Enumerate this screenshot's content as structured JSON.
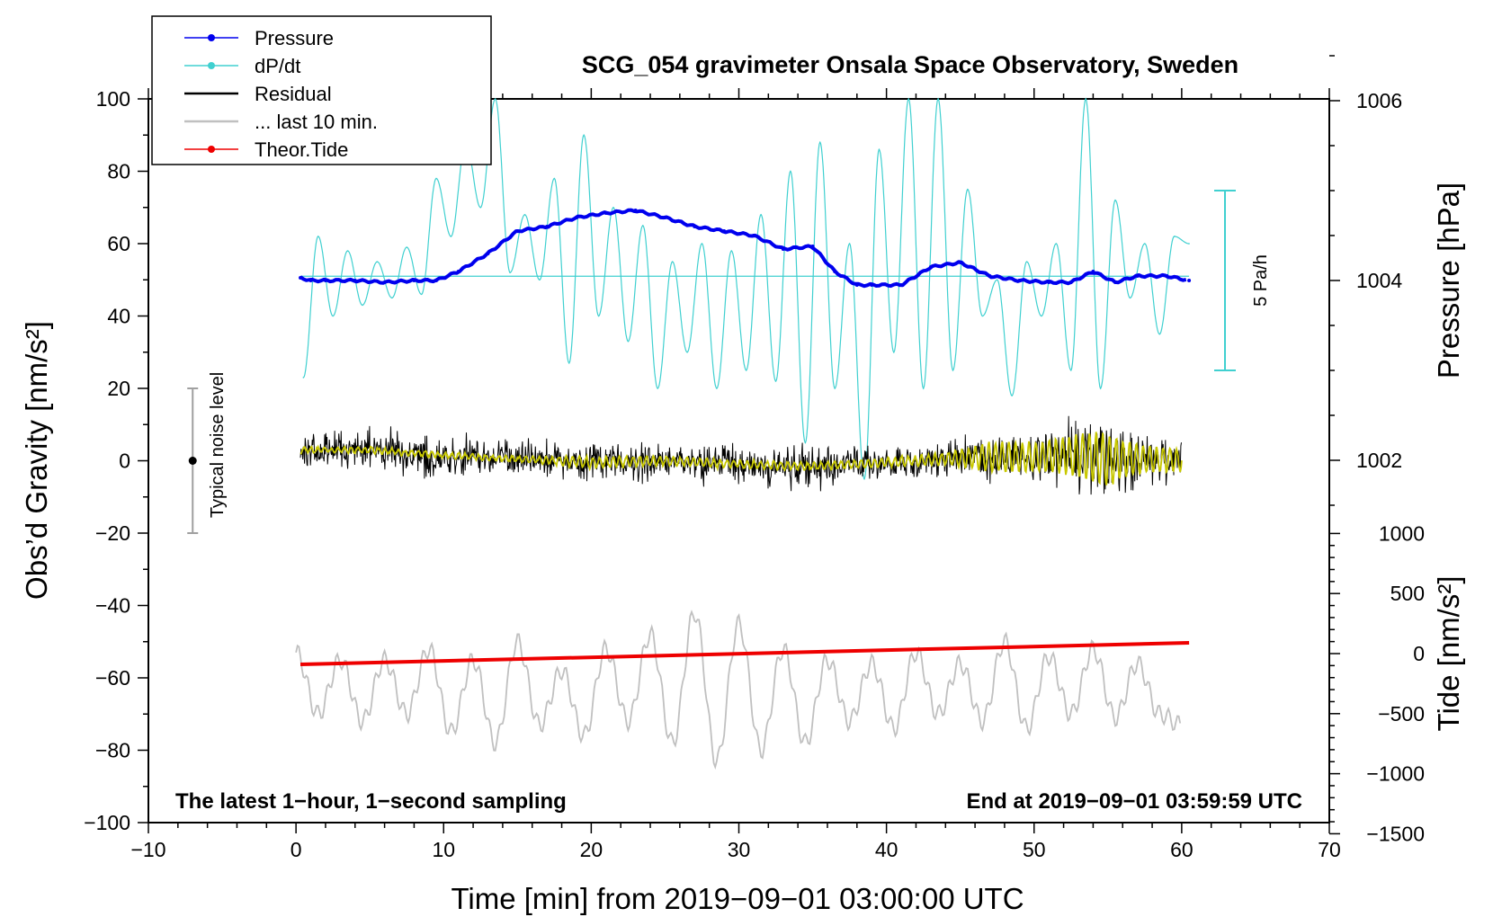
{
  "chart_data": {
    "type": "line",
    "title": "SCG_054 gravimeter Onsala Space Observatory, Sweden",
    "xlabel": "Time [min] from 2019−09−01 03:00:00 UTC",
    "ylabel_left": "Obs’d Gravity [nm/s²]",
    "ylabel_pressure": "Pressure [hPa]",
    "ylabel_tide": "Tide [nm/s²]",
    "xlim": [
      -10,
      70
    ],
    "ylim": [
      -100,
      100
    ],
    "pressure_lim": [
      1002,
      1006
    ],
    "tide_lim": [
      -1500,
      1000
    ],
    "x_ticks": [
      "−10",
      "0",
      "10",
      "20",
      "30",
      "40",
      "50",
      "60",
      "70"
    ],
    "y_ticks": [
      "100",
      "80",
      "60",
      "40",
      "20",
      "0",
      "−20",
      "−40",
      "−60",
      "−80",
      "−100"
    ],
    "pressure_ticks": [
      "1006",
      "1004",
      "1002"
    ],
    "tide_ticks": [
      "1000",
      "500",
      "0",
      "−500",
      "−1000",
      "−1500"
    ],
    "legend": {
      "placement": "top-left",
      "entries": [
        {
          "label": "Pressure",
          "color": "#0000ee",
          "marker": "dot"
        },
        {
          "label": "dP/dt",
          "color": "#40d0d0",
          "marker": "dot"
        },
        {
          "label": "Residual",
          "color": "#000000",
          "marker": "line"
        },
        {
          "label": "... last 10 min.",
          "color": "#c0c0c0",
          "marker": "line"
        },
        {
          "label": "Theor.Tide",
          "color": "#ee0000",
          "marker": "dot"
        }
      ]
    },
    "annotations": {
      "bottom_left": "The latest 1−hour, 1−second sampling",
      "bottom_right": "End at 2019−09−01 03:59:59 UTC",
      "noise_label": "Typical noise level",
      "rate_label": "5 Pa/h"
    },
    "noise_bar": {
      "x": -7,
      "center": 0,
      "low": -20,
      "high": 20
    },
    "series": [
      {
        "name": "Pressure",
        "axis": "pressure",
        "color": "#0000ee",
        "x": [
          0.3,
          1,
          2,
          4,
          6,
          8,
          9.5,
          11,
          13,
          15,
          17,
          19,
          21,
          23,
          25,
          27,
          29,
          31,
          33,
          35,
          36.5,
          38,
          39,
          41,
          43,
          45,
          47,
          49,
          51,
          52.5,
          54,
          55.5,
          57,
          59,
          60.5
        ],
        "values": [
          1004.03,
          1004.0,
          1004.0,
          1004.0,
          1003.98,
          1004.0,
          1004.0,
          1004.1,
          1004.3,
          1004.55,
          1004.6,
          1004.7,
          1004.75,
          1004.78,
          1004.7,
          1004.6,
          1004.55,
          1004.5,
          1004.35,
          1004.38,
          1004.1,
          1003.95,
          1003.95,
          1003.95,
          1004.15,
          1004.2,
          1004.05,
          1004.0,
          1003.98,
          1003.98,
          1004.1,
          1003.98,
          1004.05,
          1004.05,
          1004.0
        ]
      },
      {
        "name": "dP/dt",
        "axis": "left",
        "color": "#40d0d0",
        "reference_level": 51,
        "x": [
          0.5,
          1.5,
          2.5,
          3.5,
          4.5,
          5.5,
          6.5,
          7.5,
          8.5,
          9.5,
          10.5,
          11.5,
          12.5,
          13.5,
          14.5,
          15.5,
          16.5,
          17.5,
          18.5,
          19.5,
          20.5,
          21.5,
          22.5,
          23.5,
          24.5,
          25.5,
          26.5,
          27.5,
          28.5,
          29.5,
          30.5,
          31.5,
          32.5,
          33.5,
          34.5,
          35.5,
          36.5,
          37.5,
          38.5,
          39.5,
          40.5,
          41.5,
          42.5,
          43.5,
          44.5,
          45.5,
          46.5,
          47.5,
          48.5,
          49.5,
          50.5,
          51.5,
          52.5,
          53.5,
          54.5,
          55.5,
          56.5,
          57.5,
          58.5,
          59.5,
          60.5
        ],
        "values": [
          23,
          62,
          40,
          58,
          43,
          55,
          45,
          59,
          46,
          78,
          62,
          88,
          70,
          100,
          52,
          68,
          50,
          78,
          27,
          90,
          40,
          70,
          33,
          65,
          20,
          55,
          30,
          60,
          20,
          58,
          25,
          68,
          22,
          80,
          5,
          88,
          20,
          60,
          -5,
          86,
          30,
          100,
          20,
          100,
          25,
          75,
          40,
          50,
          18,
          55,
          40,
          60,
          25,
          100,
          20,
          72,
          45,
          60,
          35,
          62,
          60
        ]
      },
      {
        "name": "Residual",
        "axis": "left",
        "color": "#000000",
        "x": [
          0.3,
          5,
          10,
          15,
          20,
          25,
          30,
          35,
          40,
          44,
          47,
          50,
          52,
          54,
          55,
          56,
          58,
          60
        ],
        "values": [
          3,
          3,
          1.5,
          0.5,
          -0.5,
          0,
          -1,
          -1.5,
          -0.5,
          0.5,
          1,
          1,
          1.5,
          1,
          0,
          0.5,
          0.5,
          0
        ],
        "noise_amplitude": [
          7,
          7,
          6.5,
          6,
          6,
          6,
          6.5,
          7,
          6.5,
          6.5,
          8,
          8,
          10,
          15,
          15,
          12,
          9,
          8
        ]
      },
      {
        "name": "Residual (filtered)",
        "axis": "left",
        "color": "#c8c800",
        "x": [
          0.3,
          5,
          10,
          15,
          20,
          25,
          30,
          35,
          40,
          44,
          47,
          50,
          52,
          54,
          55,
          56,
          58,
          60
        ],
        "values": [
          3,
          3,
          1.5,
          0.5,
          -0.5,
          0,
          -1,
          -1.5,
          -0.5,
          0.5,
          1,
          1,
          1.5,
          1,
          0,
          0.5,
          0.5,
          0
        ],
        "oscillation_amplitude": [
          0.7,
          0.7,
          0.7,
          0.7,
          1.5,
          1.2,
          1.0,
          1.0,
          1.2,
          1.5,
          4,
          4,
          5,
          7,
          7,
          5,
          3.5,
          3
        ]
      },
      {
        "name": "... last 10 min.",
        "axis": "left",
        "color": "#c0c0c0",
        "x": [
          0,
          1.5,
          3,
          4.5,
          6,
          7.5,
          9,
          10.5,
          12,
          13.5,
          15,
          16.5,
          18,
          19.5,
          21,
          22.5,
          24,
          25.5,
          27,
          28.5,
          30,
          31.5,
          33,
          34.5,
          36,
          37.5,
          39,
          40.5,
          42,
          43.5,
          45,
          46.5,
          48,
          49.5,
          51,
          52.5,
          54,
          55.5,
          57,
          58.5,
          60
        ],
        "values": [
          -53,
          -70,
          -55,
          -72,
          -55,
          -70,
          -52,
          -75,
          -55,
          -78,
          -50,
          -73,
          -58,
          -76,
          -52,
          -72,
          -48,
          -78,
          -42,
          -83,
          -45,
          -80,
          -52,
          -78,
          -55,
          -72,
          -56,
          -74,
          -53,
          -70,
          -56,
          -72,
          -50,
          -74,
          -54,
          -70,
          -52,
          -71,
          -56,
          -70,
          -73
        ]
      },
      {
        "name": "Theor.Tide",
        "axis": "tide",
        "color": "#ee0000",
        "x": [
          0.3,
          60.5
        ],
        "values": [
          -90,
          90
        ]
      }
    ]
  }
}
